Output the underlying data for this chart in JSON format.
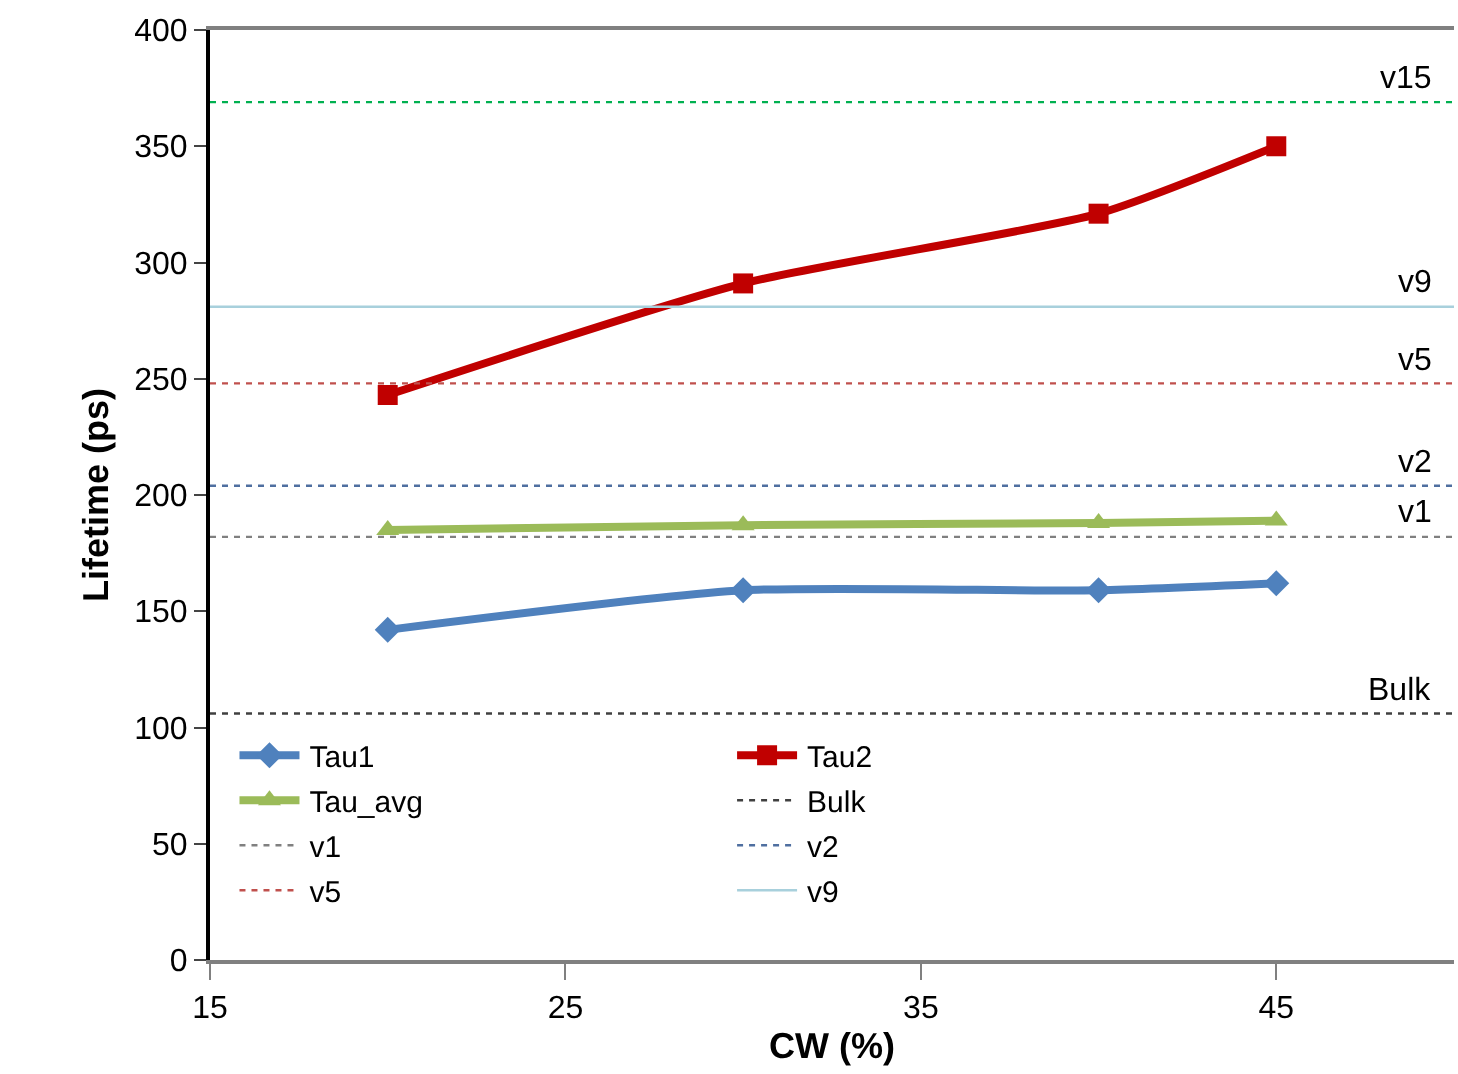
{
  "chart_data": {
    "type": "line",
    "xlabel": "CW (%)",
    "ylabel": "Lifetime (ps)",
    "xlim": [
      15,
      50
    ],
    "xticks": [
      15,
      25,
      35,
      45
    ],
    "ylim": [
      0,
      400
    ],
    "yticks": [
      0,
      50,
      100,
      150,
      200,
      250,
      300,
      350,
      400
    ],
    "grid": false,
    "legend": "bottom",
    "series": [
      {
        "name": "Tau1",
        "color": "#4f81bd",
        "x": [
          20,
          30,
          40,
          45
        ],
        "values": [
          142,
          159,
          159,
          162
        ],
        "marker": "diamond",
        "line_style": "solid"
      },
      {
        "name": "Tau2",
        "color": "#c00000",
        "x": [
          20,
          30,
          40,
          45
        ],
        "values": [
          243,
          291,
          321,
          350
        ],
        "marker": "square",
        "line_style": "solid"
      },
      {
        "name": "Tau_avg",
        "color": "#9bbb59",
        "x": [
          20,
          30,
          40,
          45
        ],
        "values": [
          185,
          187,
          188,
          189
        ],
        "marker": "triangle",
        "line_style": "solid"
      },
      {
        "name": "Bulk",
        "color": "#404040",
        "x": [
          15,
          50
        ],
        "values": [
          106,
          106
        ],
        "marker": "none",
        "line_style": "dotted"
      },
      {
        "name": "v1",
        "color": "#808080",
        "x": [
          15,
          50
        ],
        "values": [
          182,
          182
        ],
        "marker": "none",
        "line_style": "dotted"
      },
      {
        "name": "v2",
        "color": "#4f6fa0",
        "x": [
          15,
          50
        ],
        "values": [
          204,
          204
        ],
        "marker": "none",
        "line_style": "dotted"
      },
      {
        "name": "v5",
        "color": "#c0504d",
        "x": [
          15,
          50
        ],
        "values": [
          248,
          248
        ],
        "marker": "none",
        "line_style": "dotted"
      },
      {
        "name": "v9",
        "color": "#a8d0dc",
        "x": [
          15,
          50
        ],
        "values": [
          281,
          281
        ],
        "marker": "none",
        "line_style": "solid"
      }
    ],
    "ref_lines": [
      {
        "axis": "y",
        "value": 369,
        "color": "#00b050",
        "line_style": "dotted"
      }
    ],
    "annotations": [
      {
        "text": "Bulk",
        "y": 106
      },
      {
        "text": "v1",
        "y": 182
      },
      {
        "text": "v2",
        "y": 204
      },
      {
        "text": "v5",
        "y": 248
      },
      {
        "text": "v9",
        "y": 281
      },
      {
        "text": "v15",
        "y": 369
      }
    ]
  }
}
